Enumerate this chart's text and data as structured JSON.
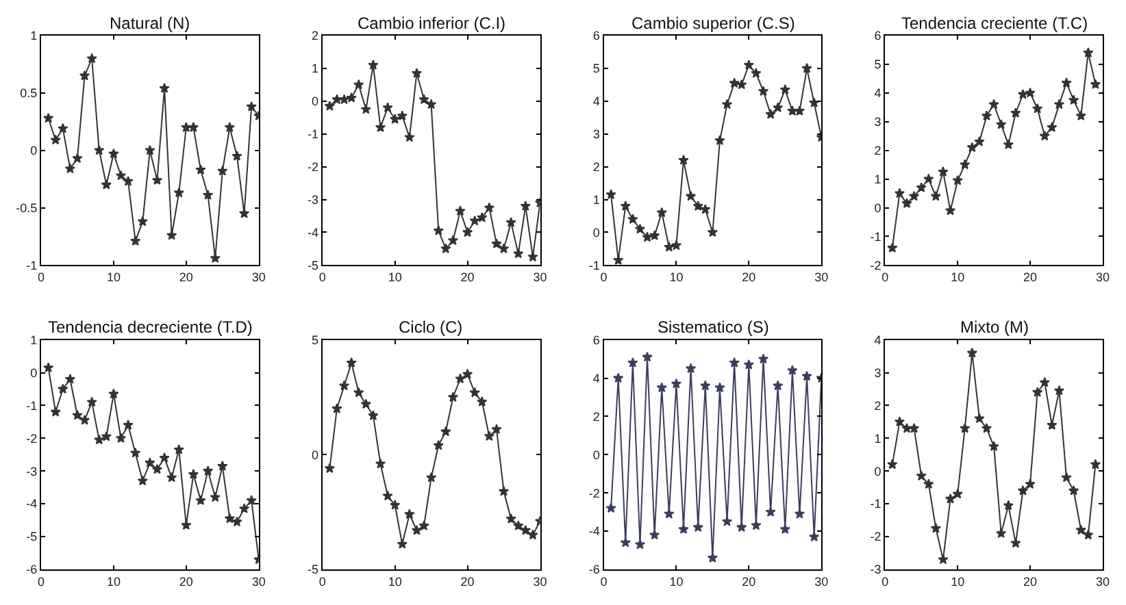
{
  "chart_data": [
    {
      "type": "line",
      "title": "Natural (N)",
      "x": [
        1,
        2,
        3,
        4,
        5,
        6,
        7,
        8,
        9,
        10,
        11,
        12,
        13,
        14,
        15,
        16,
        17,
        18,
        19,
        20,
        21,
        22,
        23,
        24,
        25,
        26,
        27,
        28,
        29,
        30
      ],
      "series": [
        {
          "color": "#333333",
          "values": [
            0.28,
            0.09,
            0.19,
            -0.16,
            -0.07,
            0.65,
            0.8,
            0.0,
            -0.3,
            -0.03,
            -0.22,
            -0.27,
            -0.79,
            -0.62,
            0.0,
            -0.26,
            0.54,
            -0.74,
            -0.37,
            0.2,
            0.2,
            -0.17,
            -0.39,
            -0.94,
            -0.18,
            0.2,
            -0.05,
            -0.55,
            0.38,
            0.3
          ]
        }
      ],
      "xlim": [
        0,
        30
      ],
      "xticks": [
        0,
        10,
        20,
        30
      ],
      "ylim": [
        -1,
        1
      ],
      "yticks": [
        -1,
        -0.5,
        0,
        0.5,
        1
      ],
      "marker": "star",
      "line_style": "solid"
    },
    {
      "type": "line",
      "title": "Cambio inferior (C.I)",
      "x": [
        1,
        2,
        3,
        4,
        5,
        6,
        7,
        8,
        9,
        10,
        11,
        12,
        13,
        14,
        15,
        16,
        17,
        18,
        19,
        20,
        21,
        22,
        23,
        24,
        25,
        26,
        27,
        28,
        29,
        30
      ],
      "series": [
        {
          "color": "#333333",
          "values": [
            -0.15,
            0.05,
            0.05,
            0.1,
            0.5,
            -0.25,
            1.1,
            -0.8,
            -0.2,
            -0.55,
            -0.45,
            -1.1,
            0.85,
            0.05,
            -0.1,
            -3.95,
            -4.5,
            -4.25,
            -3.35,
            -4.0,
            -3.65,
            -3.55,
            -3.25,
            -4.35,
            -4.5,
            -3.7,
            -4.65,
            -3.2,
            -4.75,
            -3.1
          ]
        }
      ],
      "xlim": [
        0,
        30
      ],
      "xticks": [
        0,
        10,
        20,
        30
      ],
      "ylim": [
        -5,
        2
      ],
      "yticks": [
        -5,
        -4,
        -3,
        -2,
        -1,
        0,
        1,
        2
      ],
      "marker": "star",
      "line_style": "solid"
    },
    {
      "type": "line",
      "title": "Cambio superior (C.S)",
      "x": [
        1,
        2,
        3,
        4,
        5,
        6,
        7,
        8,
        9,
        10,
        11,
        12,
        13,
        14,
        15,
        16,
        17,
        18,
        19,
        20,
        21,
        22,
        23,
        24,
        25,
        26,
        27,
        28,
        29,
        30
      ],
      "series": [
        {
          "color": "#333333",
          "values": [
            1.15,
            -0.85,
            0.8,
            0.4,
            0.1,
            -0.15,
            -0.1,
            0.6,
            -0.45,
            -0.4,
            2.2,
            1.1,
            0.8,
            0.7,
            0.0,
            2.8,
            3.9,
            4.55,
            4.5,
            5.1,
            4.85,
            4.3,
            3.6,
            3.8,
            4.35,
            3.7,
            3.7,
            5.0,
            3.95,
            2.9
          ]
        }
      ],
      "xlim": [
        0,
        30
      ],
      "xticks": [
        0,
        10,
        20,
        30
      ],
      "ylim": [
        -1,
        6
      ],
      "yticks": [
        -1,
        0,
        1,
        2,
        3,
        4,
        5,
        6
      ],
      "marker": "star",
      "line_style": "solid"
    },
    {
      "type": "line",
      "title": "Tendencia creciente (T.C)",
      "x": [
        1,
        2,
        3,
        4,
        5,
        6,
        7,
        8,
        9,
        10,
        11,
        12,
        13,
        14,
        15,
        16,
        17,
        18,
        19,
        20,
        21,
        22,
        23,
        24,
        25,
        26,
        27,
        28,
        29
      ],
      "series": [
        {
          "color": "#333333",
          "values": [
            -1.4,
            0.5,
            0.15,
            0.4,
            0.7,
            1.0,
            0.4,
            1.25,
            -0.1,
            0.95,
            1.5,
            2.1,
            2.3,
            3.2,
            3.6,
            2.9,
            2.2,
            3.3,
            3.95,
            4.0,
            3.45,
            2.5,
            2.8,
            3.6,
            4.35,
            3.75,
            3.2,
            5.4,
            4.3
          ]
        }
      ],
      "xlim": [
        0,
        30
      ],
      "xticks": [
        0,
        10,
        20,
        30
      ],
      "ylim": [
        -2,
        6
      ],
      "yticks": [
        -2,
        -1,
        0,
        1,
        2,
        3,
        4,
        5,
        6
      ],
      "marker": "star",
      "line_style": "solid"
    },
    {
      "type": "line",
      "title": "Tendencia decreciente (T.D)",
      "x": [
        1,
        2,
        3,
        4,
        5,
        6,
        7,
        8,
        9,
        10,
        11,
        12,
        13,
        14,
        15,
        16,
        17,
        18,
        19,
        20,
        21,
        22,
        23,
        24,
        25,
        26,
        27,
        28,
        29,
        30
      ],
      "series": [
        {
          "color": "#333333",
          "values": [
            0.15,
            -1.2,
            -0.5,
            -0.2,
            -1.3,
            -1.45,
            -0.9,
            -2.05,
            -1.95,
            -0.65,
            -2.0,
            -1.6,
            -2.45,
            -3.3,
            -2.75,
            -2.95,
            -2.6,
            -3.2,
            -2.35,
            -4.65,
            -3.1,
            -3.9,
            -3.0,
            -3.8,
            -2.85,
            -4.45,
            -4.55,
            -4.15,
            -3.9,
            -5.7
          ]
        }
      ],
      "xlim": [
        0,
        30
      ],
      "xticks": [
        0,
        10,
        20,
        30
      ],
      "ylim": [
        -6,
        1
      ],
      "yticks": [
        -6,
        -5,
        -4,
        -3,
        -2,
        -1,
        0,
        1
      ],
      "marker": "star",
      "line_style": "solid"
    },
    {
      "type": "line",
      "title": "Ciclo (C)",
      "x": [
        1,
        2,
        3,
        4,
        5,
        6,
        7,
        8,
        9,
        10,
        11,
        12,
        13,
        14,
        15,
        16,
        17,
        18,
        19,
        20,
        21,
        22,
        23,
        24,
        25,
        26,
        27,
        28,
        29,
        30
      ],
      "series": [
        {
          "color": "#333333",
          "values": [
            -0.6,
            2.0,
            3.0,
            4.0,
            2.7,
            2.2,
            1.7,
            -0.4,
            -1.8,
            -2.2,
            -3.9,
            -2.6,
            -3.3,
            -3.1,
            -1.0,
            0.4,
            1.0,
            2.5,
            3.3,
            3.5,
            2.7,
            2.3,
            0.8,
            1.1,
            -1.6,
            -2.8,
            -3.1,
            -3.3,
            -3.5,
            -2.9
          ]
        }
      ],
      "xlim": [
        0,
        30
      ],
      "xticks": [
        0,
        10,
        20,
        30
      ],
      "ylim": [
        -5,
        5
      ],
      "yticks": [
        -5,
        0,
        5
      ],
      "marker": "star",
      "line_style": "solid"
    },
    {
      "type": "line",
      "title": "Sistematico (S)",
      "x": [
        1,
        2,
        3,
        4,
        5,
        6,
        7,
        8,
        9,
        10,
        11,
        12,
        13,
        14,
        15,
        16,
        17,
        18,
        19,
        20,
        21,
        22,
        23,
        24,
        25,
        26,
        27,
        28,
        29,
        30
      ],
      "series": [
        {
          "color": "#3a3f5c",
          "values": [
            -2.8,
            4.0,
            -4.6,
            4.8,
            -4.7,
            5.1,
            -4.2,
            3.5,
            -3.1,
            3.7,
            -3.9,
            4.5,
            -3.8,
            3.6,
            -5.4,
            3.5,
            -3.5,
            4.8,
            -3.8,
            4.7,
            -3.7,
            5.0,
            -3.0,
            3.6,
            -3.9,
            4.4,
            -3.1,
            4.1,
            -4.3,
            4.0
          ]
        }
      ],
      "xlim": [
        0,
        30
      ],
      "xticks": [
        0,
        10,
        20,
        30
      ],
      "ylim": [
        -6,
        6
      ],
      "yticks": [
        -6,
        -4,
        -2,
        0,
        2,
        4,
        6
      ],
      "marker": "star",
      "line_style": "solid"
    },
    {
      "type": "line",
      "title": "Mixto (M)",
      "x": [
        1,
        2,
        3,
        4,
        5,
        6,
        7,
        8,
        9,
        10,
        11,
        12,
        13,
        14,
        15,
        16,
        17,
        18,
        19,
        20,
        21,
        22,
        23,
        24,
        25,
        26,
        27,
        28,
        29
      ],
      "series": [
        {
          "color": "#333333",
          "values": [
            0.2,
            1.5,
            1.3,
            1.3,
            -0.15,
            -0.4,
            -1.75,
            -2.7,
            -0.85,
            -0.7,
            1.3,
            3.6,
            1.6,
            1.3,
            0.75,
            -1.9,
            -1.05,
            -2.2,
            -0.6,
            -0.4,
            2.4,
            2.7,
            1.4,
            2.45,
            -0.2,
            -0.6,
            -1.8,
            -1.95,
            0.2
          ]
        }
      ],
      "xlim": [
        0,
        30
      ],
      "xticks": [
        0,
        10,
        20,
        30
      ],
      "ylim": [
        -3,
        4
      ],
      "yticks": [
        -3,
        -2,
        -1,
        0,
        1,
        2,
        3,
        4
      ],
      "marker": "star",
      "line_style": "solid"
    }
  ]
}
